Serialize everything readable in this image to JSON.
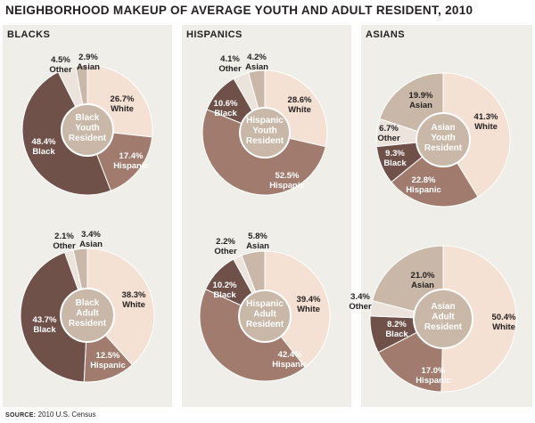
{
  "title": "NEIGHBORHOOD MAKEUP OF AVERAGE YOUTH AND ADULT RESIDENT, 2010",
  "source": {
    "label": "SOURCE:",
    "text": "2010 U.S. Census"
  },
  "panels": [
    {
      "heading": "BLACKS"
    },
    {
      "heading": "HISPANICS"
    },
    {
      "heading": "ASIANS"
    }
  ],
  "colors": {
    "White": "#f5e1d3",
    "Hispanic": "#a17c6e",
    "Black": "#6f5149",
    "Other": "#ece4dc",
    "Asian": "#c9b8a8",
    "center": "#c9b8a8"
  },
  "chart_data": [
    {
      "type": "pie",
      "center_label": [
        "Black",
        "Youth",
        "Resident"
      ],
      "slices": [
        {
          "name": "White",
          "pct": "26.7%",
          "value": 26.7
        },
        {
          "name": "Hispanic",
          "pct": "17.4%",
          "value": 17.4
        },
        {
          "name": "Black",
          "pct": "48.4%",
          "value": 48.4
        },
        {
          "name": "Other",
          "pct": "4.5%",
          "value": 4.5
        },
        {
          "name": "Asian",
          "pct": "2.9%",
          "value": 2.9
        }
      ]
    },
    {
      "type": "pie",
      "center_label": [
        "Black",
        "Adult",
        "Resident"
      ],
      "slices": [
        {
          "name": "White",
          "pct": "38.3%",
          "value": 38.3
        },
        {
          "name": "Hispanic",
          "pct": "12.5%",
          "value": 12.5
        },
        {
          "name": "Black",
          "pct": "43.7%",
          "value": 43.7
        },
        {
          "name": "Other",
          "pct": "2.1%",
          "value": 2.1
        },
        {
          "name": "Asian",
          "pct": "3.4%",
          "value": 3.4
        }
      ]
    },
    {
      "type": "pie",
      "center_label": [
        "Hispanic",
        "Youth",
        "Resident"
      ],
      "slices": [
        {
          "name": "White",
          "pct": "28.6%",
          "value": 28.6
        },
        {
          "name": "Hispanic",
          "pct": "52.5%",
          "value": 52.5
        },
        {
          "name": "Black",
          "pct": "10.6%",
          "value": 10.6
        },
        {
          "name": "Other",
          "pct": "4.1%",
          "value": 4.1
        },
        {
          "name": "Asian",
          "pct": "4.2%",
          "value": 4.2
        }
      ]
    },
    {
      "type": "pie",
      "center_label": [
        "Hispanic",
        "Adult",
        "Resident"
      ],
      "slices": [
        {
          "name": "White",
          "pct": "39.4%",
          "value": 39.4
        },
        {
          "name": "Hispanic",
          "pct": "42.4%",
          "value": 42.4
        },
        {
          "name": "Black",
          "pct": "10.2%",
          "value": 10.2
        },
        {
          "name": "Other",
          "pct": "2.2%",
          "value": 2.2
        },
        {
          "name": "Asian",
          "pct": "5.8%",
          "value": 5.8
        }
      ]
    },
    {
      "type": "pie",
      "center_label": [
        "Asian",
        "Youth",
        "Resident"
      ],
      "slices": [
        {
          "name": "White",
          "pct": "41.3%",
          "value": 41.3
        },
        {
          "name": "Hispanic",
          "pct": "22.8%",
          "value": 22.8
        },
        {
          "name": "Black",
          "pct": "9.3%",
          "value": 9.3
        },
        {
          "name": "Other",
          "pct": "6.7%",
          "value": 6.7
        },
        {
          "name": "Asian",
          "pct": "19.9%",
          "value": 19.9
        }
      ]
    },
    {
      "type": "pie",
      "center_label": [
        "Asian",
        "Adult",
        "Resident"
      ],
      "slices": [
        {
          "name": "White",
          "pct": "50.4%",
          "value": 50.4
        },
        {
          "name": "Hispanic",
          "pct": "17.0%",
          "value": 17.0
        },
        {
          "name": "Black",
          "pct": "8.2%",
          "value": 8.2
        },
        {
          "name": "Other",
          "pct": "3.4%",
          "value": 3.4
        },
        {
          "name": "Asian",
          "pct": "21.0%",
          "value": 21.0
        }
      ]
    }
  ]
}
